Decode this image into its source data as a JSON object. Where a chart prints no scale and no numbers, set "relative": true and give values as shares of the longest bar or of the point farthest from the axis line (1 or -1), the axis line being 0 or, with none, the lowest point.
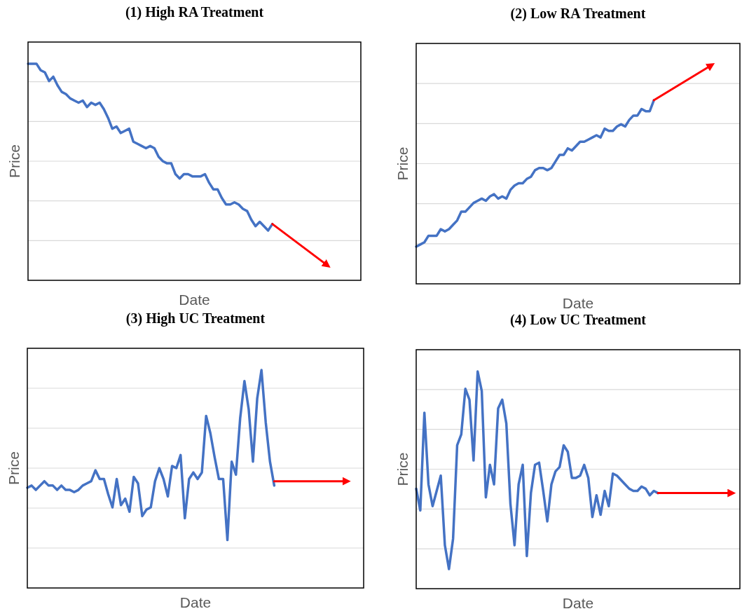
{
  "chart_data": [
    {
      "type": "line",
      "title": "(1) High RA Treatment",
      "xlabel": "Date",
      "ylabel": "Price",
      "relative": true,
      "grid": "y",
      "categories": [
        null,
        null,
        null,
        null,
        null,
        null,
        null,
        null,
        null,
        null,
        null,
        null,
        null,
        null,
        null,
        null,
        null,
        null,
        null,
        null,
        null,
        null,
        null,
        null,
        null,
        null,
        null,
        null,
        null,
        null,
        null,
        null,
        null,
        null,
        null,
        null,
        null,
        null,
        null,
        null,
        null,
        null,
        null,
        null,
        null,
        null,
        null,
        null,
        null,
        null,
        null,
        null,
        null,
        null,
        null,
        null,
        null,
        null,
        null,
        null,
        null,
        null,
        null,
        null,
        null,
        null,
        null,
        null,
        null,
        null,
        null,
        null,
        null,
        null,
        null,
        null,
        null,
        null,
        null,
        null
      ],
      "series": [
        {
          "color": "#4472c4",
          "values": [
            1.0,
            1.0,
            1.0,
            0.97,
            0.96,
            0.92,
            0.94,
            0.9,
            0.87,
            0.86,
            0.84,
            0.83,
            0.82,
            0.83,
            0.8,
            0.82,
            0.81,
            0.82,
            0.79,
            0.75,
            0.7,
            0.71,
            0.68,
            0.69,
            0.7,
            0.64,
            0.63,
            0.62,
            0.61,
            0.62,
            0.61,
            0.57,
            0.55,
            0.54,
            0.54,
            0.49,
            0.47,
            0.49,
            0.49,
            0.48,
            0.48,
            0.48,
            0.49,
            0.45,
            0.42,
            0.42,
            0.38,
            0.35,
            0.35,
            0.36,
            0.35,
            0.33,
            0.32,
            0.28,
            0.25,
            0.27,
            0.25,
            0.23,
            0.26,
            null,
            null,
            null,
            null,
            null,
            null,
            null,
            null,
            null,
            null,
            null,
            null,
            null,
            null,
            null,
            null,
            null,
            null,
            null,
            null,
            null
          ]
        },
        {
          "type": "line",
          "color": "#ff0000",
          "values": [
            null,
            null,
            null,
            null,
            null,
            null,
            null,
            null,
            null,
            null,
            null,
            null,
            null,
            null,
            null,
            null,
            null,
            null,
            null,
            null,
            null,
            null,
            null,
            null,
            null,
            null,
            null,
            null,
            null,
            null,
            null,
            null,
            null,
            null,
            null,
            null,
            null,
            null,
            null,
            null,
            null,
            null,
            null,
            null,
            null,
            null,
            null,
            null,
            null,
            null,
            null,
            null,
            null,
            null,
            null,
            null,
            null,
            null,
            0.26,
            null,
            null,
            null,
            null,
            null,
            null,
            null,
            null,
            null,
            null,
            null,
            null,
            0.07,
            null,
            null,
            null,
            null,
            null,
            null,
            null,
            null
          ]
        }
      ]
    },
    {
      "type": "line",
      "title": "(2) Low RA Treatment",
      "xlabel": "Date",
      "ylabel": "Price",
      "relative": true,
      "grid": "y",
      "categories": [
        null,
        null,
        null,
        null,
        null,
        null,
        null,
        null,
        null,
        null,
        null,
        null,
        null,
        null,
        null,
        null,
        null,
        null,
        null,
        null,
        null,
        null,
        null,
        null,
        null,
        null,
        null,
        null,
        null,
        null,
        null,
        null,
        null,
        null,
        null,
        null,
        null,
        null,
        null,
        null,
        null,
        null,
        null,
        null,
        null,
        null,
        null,
        null,
        null,
        null,
        null,
        null,
        null,
        null,
        null,
        null,
        null,
        null,
        null,
        null,
        null,
        null,
        null,
        null,
        null,
        null,
        null,
        null,
        null,
        null,
        null,
        null,
        null,
        null,
        null,
        null,
        null,
        null,
        null,
        null
      ],
      "series": [
        {
          "color": "#4472c4",
          "values": [
            0.17,
            0.18,
            0.19,
            0.22,
            0.22,
            0.22,
            0.25,
            0.24,
            0.25,
            0.27,
            0.29,
            0.33,
            0.33,
            0.35,
            0.37,
            0.38,
            0.39,
            0.38,
            0.4,
            0.41,
            0.39,
            0.4,
            0.39,
            0.43,
            0.45,
            0.46,
            0.46,
            0.48,
            0.49,
            0.52,
            0.53,
            0.53,
            0.52,
            0.53,
            0.56,
            0.59,
            0.59,
            0.62,
            0.61,
            0.63,
            0.65,
            0.65,
            0.66,
            0.67,
            0.68,
            0.67,
            0.71,
            0.7,
            0.7,
            0.72,
            0.73,
            0.72,
            0.75,
            0.77,
            0.77,
            0.8,
            0.79,
            0.79,
            0.84,
            null,
            null,
            null,
            null,
            null,
            null,
            null,
            null,
            null,
            null,
            null,
            null,
            null,
            null,
            null,
            null,
            null,
            null,
            null,
            null,
            null
          ]
        },
        {
          "type": "line",
          "color": "#ff0000",
          "values": [
            null,
            null,
            null,
            null,
            null,
            null,
            null,
            null,
            null,
            null,
            null,
            null,
            null,
            null,
            null,
            null,
            null,
            null,
            null,
            null,
            null,
            null,
            null,
            null,
            null,
            null,
            null,
            null,
            null,
            null,
            null,
            null,
            null,
            null,
            null,
            null,
            null,
            null,
            null,
            null,
            null,
            null,
            null,
            null,
            null,
            null,
            null,
            null,
            null,
            null,
            null,
            null,
            null,
            null,
            null,
            null,
            null,
            null,
            0.84,
            null,
            null,
            null,
            null,
            null,
            null,
            null,
            null,
            null,
            null,
            null,
            null,
            null,
            1.0,
            null,
            null,
            null,
            null,
            null,
            null,
            null
          ]
        }
      ]
    },
    {
      "type": "line",
      "title": "(3) High UC Treatment",
      "xlabel": "Date",
      "ylabel": "Price",
      "relative": true,
      "grid": "y",
      "categories": [
        null,
        null,
        null,
        null,
        null,
        null,
        null,
        null,
        null,
        null,
        null,
        null,
        null,
        null,
        null,
        null,
        null,
        null,
        null,
        null,
        null,
        null,
        null,
        null,
        null,
        null,
        null,
        null,
        null,
        null,
        null,
        null,
        null,
        null,
        null,
        null,
        null,
        null,
        null,
        null,
        null,
        null,
        null,
        null,
        null,
        null,
        null,
        null,
        null,
        null,
        null,
        null,
        null,
        null,
        null,
        null,
        null,
        null,
        null,
        null,
        null,
        null,
        null,
        null,
        null,
        null,
        null,
        null,
        null,
        null,
        null,
        null,
        null,
        null,
        null,
        null,
        null,
        null,
        null,
        null
      ],
      "series": [
        {
          "color": "#4472c4",
          "values": [
            0.46,
            0.47,
            0.45,
            0.47,
            0.49,
            0.47,
            0.47,
            0.45,
            0.47,
            0.45,
            0.45,
            0.44,
            0.45,
            0.47,
            0.48,
            0.49,
            0.54,
            0.5,
            0.5,
            0.43,
            0.37,
            0.5,
            0.38,
            0.41,
            0.35,
            0.51,
            0.48,
            0.33,
            0.36,
            0.37,
            0.49,
            0.55,
            0.5,
            0.42,
            0.56,
            0.55,
            0.61,
            0.32,
            0.5,
            0.53,
            0.5,
            0.53,
            0.79,
            0.71,
            0.6,
            0.5,
            0.5,
            0.22,
            0.58,
            0.52,
            0.78,
            0.95,
            0.82,
            0.58,
            0.87,
            1.0,
            0.76,
            0.58,
            0.47,
            null,
            null,
            null,
            null,
            null,
            null,
            null,
            null,
            null,
            null,
            null,
            null,
            null,
            null,
            null,
            null,
            null,
            null,
            null,
            null,
            null
          ]
        },
        {
          "type": "line",
          "color": "#ff0000",
          "values": [
            null,
            null,
            null,
            null,
            null,
            null,
            null,
            null,
            null,
            null,
            null,
            null,
            null,
            null,
            null,
            null,
            null,
            null,
            null,
            null,
            null,
            null,
            null,
            null,
            null,
            null,
            null,
            null,
            null,
            null,
            null,
            null,
            null,
            null,
            null,
            null,
            null,
            null,
            null,
            null,
            null,
            null,
            null,
            null,
            null,
            null,
            null,
            null,
            null,
            null,
            null,
            null,
            null,
            null,
            null,
            null,
            null,
            null,
            0.49,
            null,
            null,
            null,
            null,
            null,
            null,
            null,
            null,
            null,
            null,
            null,
            null,
            null,
            null,
            null,
            null,
            0.49,
            null,
            null,
            null,
            null
          ]
        }
      ]
    },
    {
      "type": "line",
      "title": "(4) Low UC Treatment",
      "xlabel": "Date",
      "ylabel": "Price",
      "relative": true,
      "grid": "y",
      "categories": [
        null,
        null,
        null,
        null,
        null,
        null,
        null,
        null,
        null,
        null,
        null,
        null,
        null,
        null,
        null,
        null,
        null,
        null,
        null,
        null,
        null,
        null,
        null,
        null,
        null,
        null,
        null,
        null,
        null,
        null,
        null,
        null,
        null,
        null,
        null,
        null,
        null,
        null,
        null,
        null,
        null,
        null,
        null,
        null,
        null,
        null,
        null,
        null,
        null,
        null,
        null,
        null,
        null,
        null,
        null,
        null,
        null,
        null,
        null,
        null,
        null,
        null,
        null,
        null,
        null,
        null,
        null,
        null,
        null,
        null,
        null,
        null,
        null,
        null,
        null,
        null,
        null,
        null,
        null,
        null
      ],
      "series": [
        {
          "color": "#4472c4",
          "values": [
            0.46,
            0.36,
            0.81,
            0.48,
            0.38,
            0.45,
            0.52,
            0.2,
            0.09,
            0.23,
            0.66,
            0.71,
            0.92,
            0.87,
            0.59,
            1.0,
            0.91,
            0.42,
            0.57,
            0.48,
            0.83,
            0.87,
            0.76,
            0.39,
            0.2,
            0.48,
            0.57,
            0.15,
            0.44,
            0.57,
            0.58,
            0.45,
            0.31,
            0.48,
            0.54,
            0.56,
            0.66,
            0.63,
            0.51,
            0.51,
            0.52,
            0.57,
            0.51,
            0.33,
            0.43,
            0.34,
            0.45,
            0.38,
            0.53,
            0.52,
            0.5,
            0.48,
            0.46,
            0.45,
            0.45,
            0.47,
            0.46,
            0.43,
            0.45,
            0.44,
            null,
            null,
            null,
            null,
            null,
            null,
            null,
            null,
            null,
            null,
            null,
            null,
            null,
            null,
            null,
            null,
            null,
            null,
            null,
            null
          ]
        },
        {
          "type": "line",
          "color": "#ff0000",
          "values": [
            null,
            null,
            null,
            null,
            null,
            null,
            null,
            null,
            null,
            null,
            null,
            null,
            null,
            null,
            null,
            null,
            null,
            null,
            null,
            null,
            null,
            null,
            null,
            null,
            null,
            null,
            null,
            null,
            null,
            null,
            null,
            null,
            null,
            null,
            null,
            null,
            null,
            null,
            null,
            null,
            null,
            null,
            null,
            null,
            null,
            null,
            null,
            null,
            null,
            null,
            null,
            null,
            null,
            null,
            null,
            null,
            null,
            null,
            null,
            0.44,
            null,
            null,
            null,
            null,
            null,
            null,
            null,
            null,
            null,
            null,
            null,
            null,
            null,
            null,
            null,
            null,
            null,
            0.44,
            null,
            null
          ]
        }
      ]
    }
  ]
}
